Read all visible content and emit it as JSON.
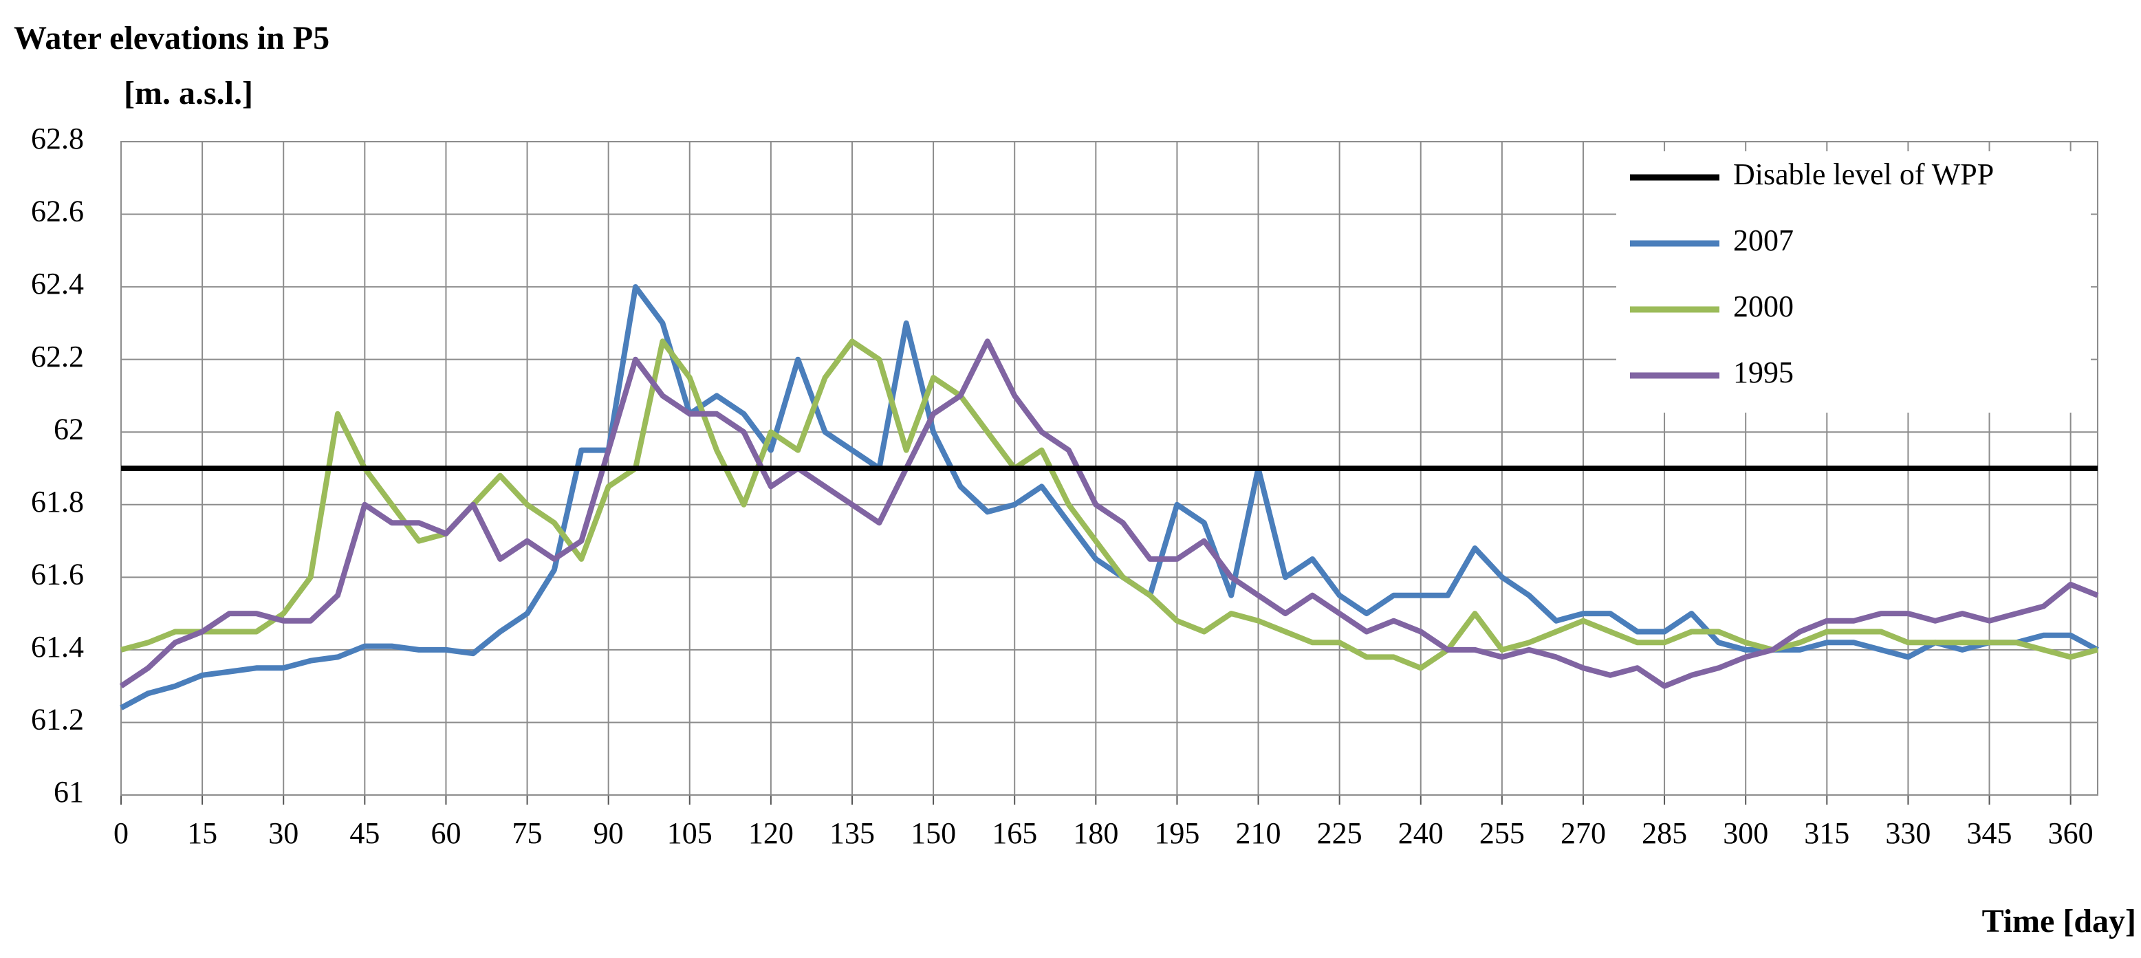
{
  "chart_data": {
    "type": "line",
    "title": "Water elevations in P5",
    "y_label": "[m. a.s.l.]",
    "x_label": "Time [day]",
    "x": [
      0,
      5,
      10,
      15,
      20,
      25,
      30,
      35,
      40,
      45,
      50,
      55,
      60,
      65,
      70,
      75,
      80,
      85,
      90,
      95,
      100,
      105,
      110,
      115,
      120,
      125,
      130,
      135,
      140,
      145,
      150,
      155,
      160,
      165,
      170,
      175,
      180,
      185,
      190,
      195,
      200,
      205,
      210,
      215,
      220,
      225,
      230,
      235,
      240,
      245,
      250,
      255,
      260,
      265,
      270,
      275,
      280,
      285,
      290,
      295,
      300,
      305,
      310,
      315,
      320,
      325,
      330,
      335,
      340,
      345,
      350,
      355,
      360,
      365
    ],
    "series": [
      {
        "name": "Disable level of WPP",
        "color": "#000000",
        "values": [
          61.9,
          61.9,
          61.9,
          61.9,
          61.9,
          61.9,
          61.9,
          61.9,
          61.9,
          61.9,
          61.9,
          61.9,
          61.9,
          61.9,
          61.9,
          61.9,
          61.9,
          61.9,
          61.9,
          61.9,
          61.9,
          61.9,
          61.9,
          61.9,
          61.9,
          61.9,
          61.9,
          61.9,
          61.9,
          61.9,
          61.9,
          61.9,
          61.9,
          61.9,
          61.9,
          61.9,
          61.9,
          61.9,
          61.9,
          61.9,
          61.9,
          61.9,
          61.9,
          61.9,
          61.9,
          61.9,
          61.9,
          61.9,
          61.9,
          61.9,
          61.9,
          61.9,
          61.9,
          61.9,
          61.9,
          61.9,
          61.9,
          61.9,
          61.9,
          61.9,
          61.9,
          61.9,
          61.9,
          61.9,
          61.9,
          61.9,
          61.9,
          61.9,
          61.9,
          61.9,
          61.9,
          61.9,
          61.9,
          61.9
        ]
      },
      {
        "name": "2007",
        "color": "#4a7ebb",
        "values": [
          61.24,
          61.28,
          61.3,
          61.33,
          61.34,
          61.35,
          61.35,
          61.37,
          61.38,
          61.41,
          61.41,
          61.4,
          61.4,
          61.39,
          61.45,
          61.5,
          61.62,
          61.95,
          61.95,
          62.4,
          62.3,
          62.05,
          62.1,
          62.05,
          61.95,
          62.2,
          62.0,
          61.95,
          61.9,
          62.3,
          62.0,
          61.85,
          61.78,
          61.8,
          61.85,
          61.75,
          61.65,
          61.6,
          61.55,
          61.8,
          61.75,
          61.55,
          61.9,
          61.6,
          61.65,
          61.55,
          61.5,
          61.55,
          61.55,
          61.55,
          61.68,
          61.6,
          61.55,
          61.48,
          61.5,
          61.5,
          61.45,
          61.45,
          61.5,
          61.42,
          61.4,
          61.4,
          61.4,
          61.42,
          61.42,
          61.4,
          61.38,
          61.42,
          61.4,
          61.42,
          61.42,
          61.44,
          61.44,
          61.4
        ]
      },
      {
        "name": "2000",
        "color": "#9bbb59",
        "values": [
          61.4,
          61.42,
          61.45,
          61.45,
          61.45,
          61.45,
          61.5,
          61.6,
          62.05,
          61.9,
          61.8,
          61.7,
          61.72,
          61.8,
          61.88,
          61.8,
          61.75,
          61.65,
          61.85,
          61.9,
          62.25,
          62.15,
          61.95,
          61.8,
          62.0,
          61.95,
          62.15,
          62.25,
          62.2,
          61.95,
          62.15,
          62.1,
          62.0,
          61.9,
          61.95,
          61.8,
          61.7,
          61.6,
          61.55,
          61.48,
          61.45,
          61.5,
          61.48,
          61.45,
          61.42,
          61.42,
          61.38,
          61.38,
          61.35,
          61.4,
          61.5,
          61.4,
          61.42,
          61.45,
          61.48,
          61.45,
          61.42,
          61.42,
          61.45,
          61.45,
          61.42,
          61.4,
          61.42,
          61.45,
          61.45,
          61.45,
          61.42,
          61.42,
          61.42,
          61.42,
          61.42,
          61.4,
          61.38,
          61.4
        ]
      },
      {
        "name": "1995",
        "color": "#8064a2",
        "values": [
          61.3,
          61.35,
          61.42,
          61.45,
          61.5,
          61.5,
          61.48,
          61.48,
          61.55,
          61.8,
          61.75,
          61.75,
          61.72,
          61.8,
          61.65,
          61.7,
          61.65,
          61.7,
          61.95,
          62.2,
          62.1,
          62.05,
          62.05,
          62.0,
          61.85,
          61.9,
          61.85,
          61.8,
          61.75,
          61.9,
          62.05,
          62.1,
          62.25,
          62.1,
          62.0,
          61.95,
          61.8,
          61.75,
          61.65,
          61.65,
          61.7,
          61.6,
          61.55,
          61.5,
          61.55,
          61.5,
          61.45,
          61.48,
          61.45,
          61.4,
          61.4,
          61.38,
          61.4,
          61.38,
          61.35,
          61.33,
          61.35,
          61.3,
          61.33,
          61.35,
          61.38,
          61.4,
          61.45,
          61.48,
          61.48,
          61.5,
          61.5,
          61.48,
          61.5,
          61.48,
          61.5,
          61.52,
          61.58,
          61.55
        ]
      }
    ],
    "xlim": [
      0,
      365
    ],
    "ylim": [
      61,
      62.8
    ],
    "xticks": [
      0,
      15,
      30,
      45,
      60,
      75,
      90,
      105,
      120,
      135,
      150,
      165,
      180,
      195,
      210,
      225,
      240,
      255,
      270,
      285,
      300,
      315,
      330,
      345,
      360
    ],
    "yticks": [
      61,
      61.2,
      61.4,
      61.6,
      61.8,
      62,
      62.2,
      62.4,
      62.6,
      62.8
    ],
    "grid": true,
    "legend": "upper right"
  }
}
